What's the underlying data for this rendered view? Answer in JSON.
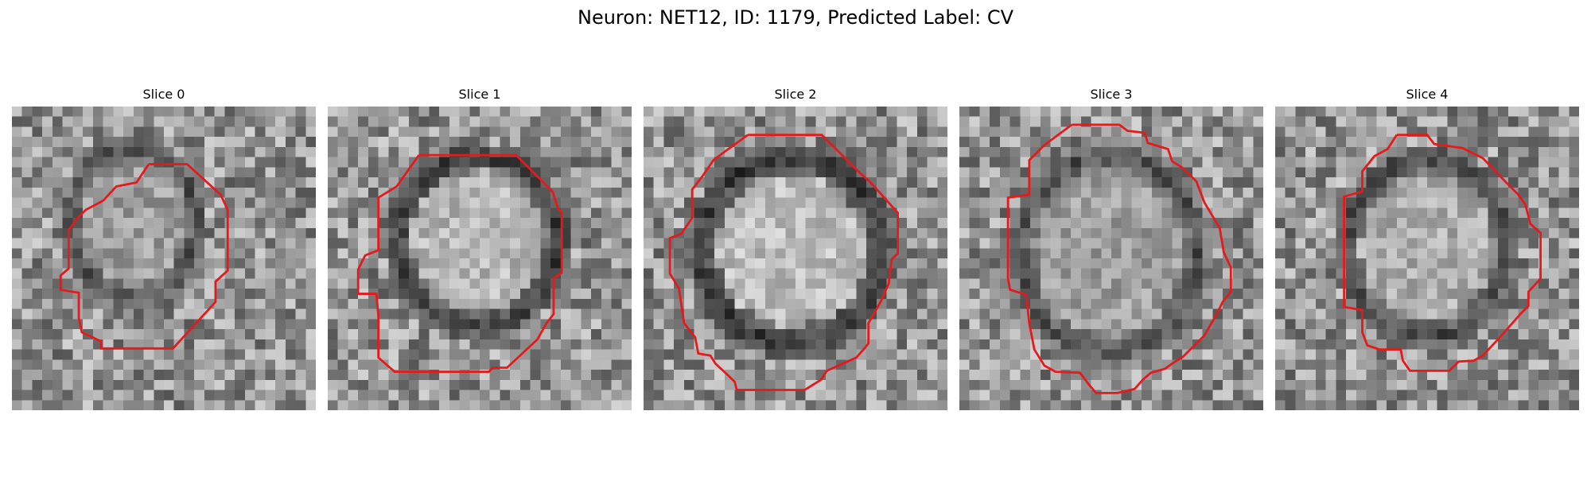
{
  "figure": {
    "title": "Neuron: NET12, ID: 1179, Predicted Label: CV"
  },
  "panels": [
    {
      "title": "Slice 0"
    },
    {
      "title": "Slice 1"
    },
    {
      "title": "Slice 2"
    },
    {
      "title": "Slice 3"
    },
    {
      "title": "Slice 4"
    }
  ],
  "colors": {
    "contour": "#e41a1c",
    "background": "#ffffff",
    "colormap": "grayscale"
  }
}
